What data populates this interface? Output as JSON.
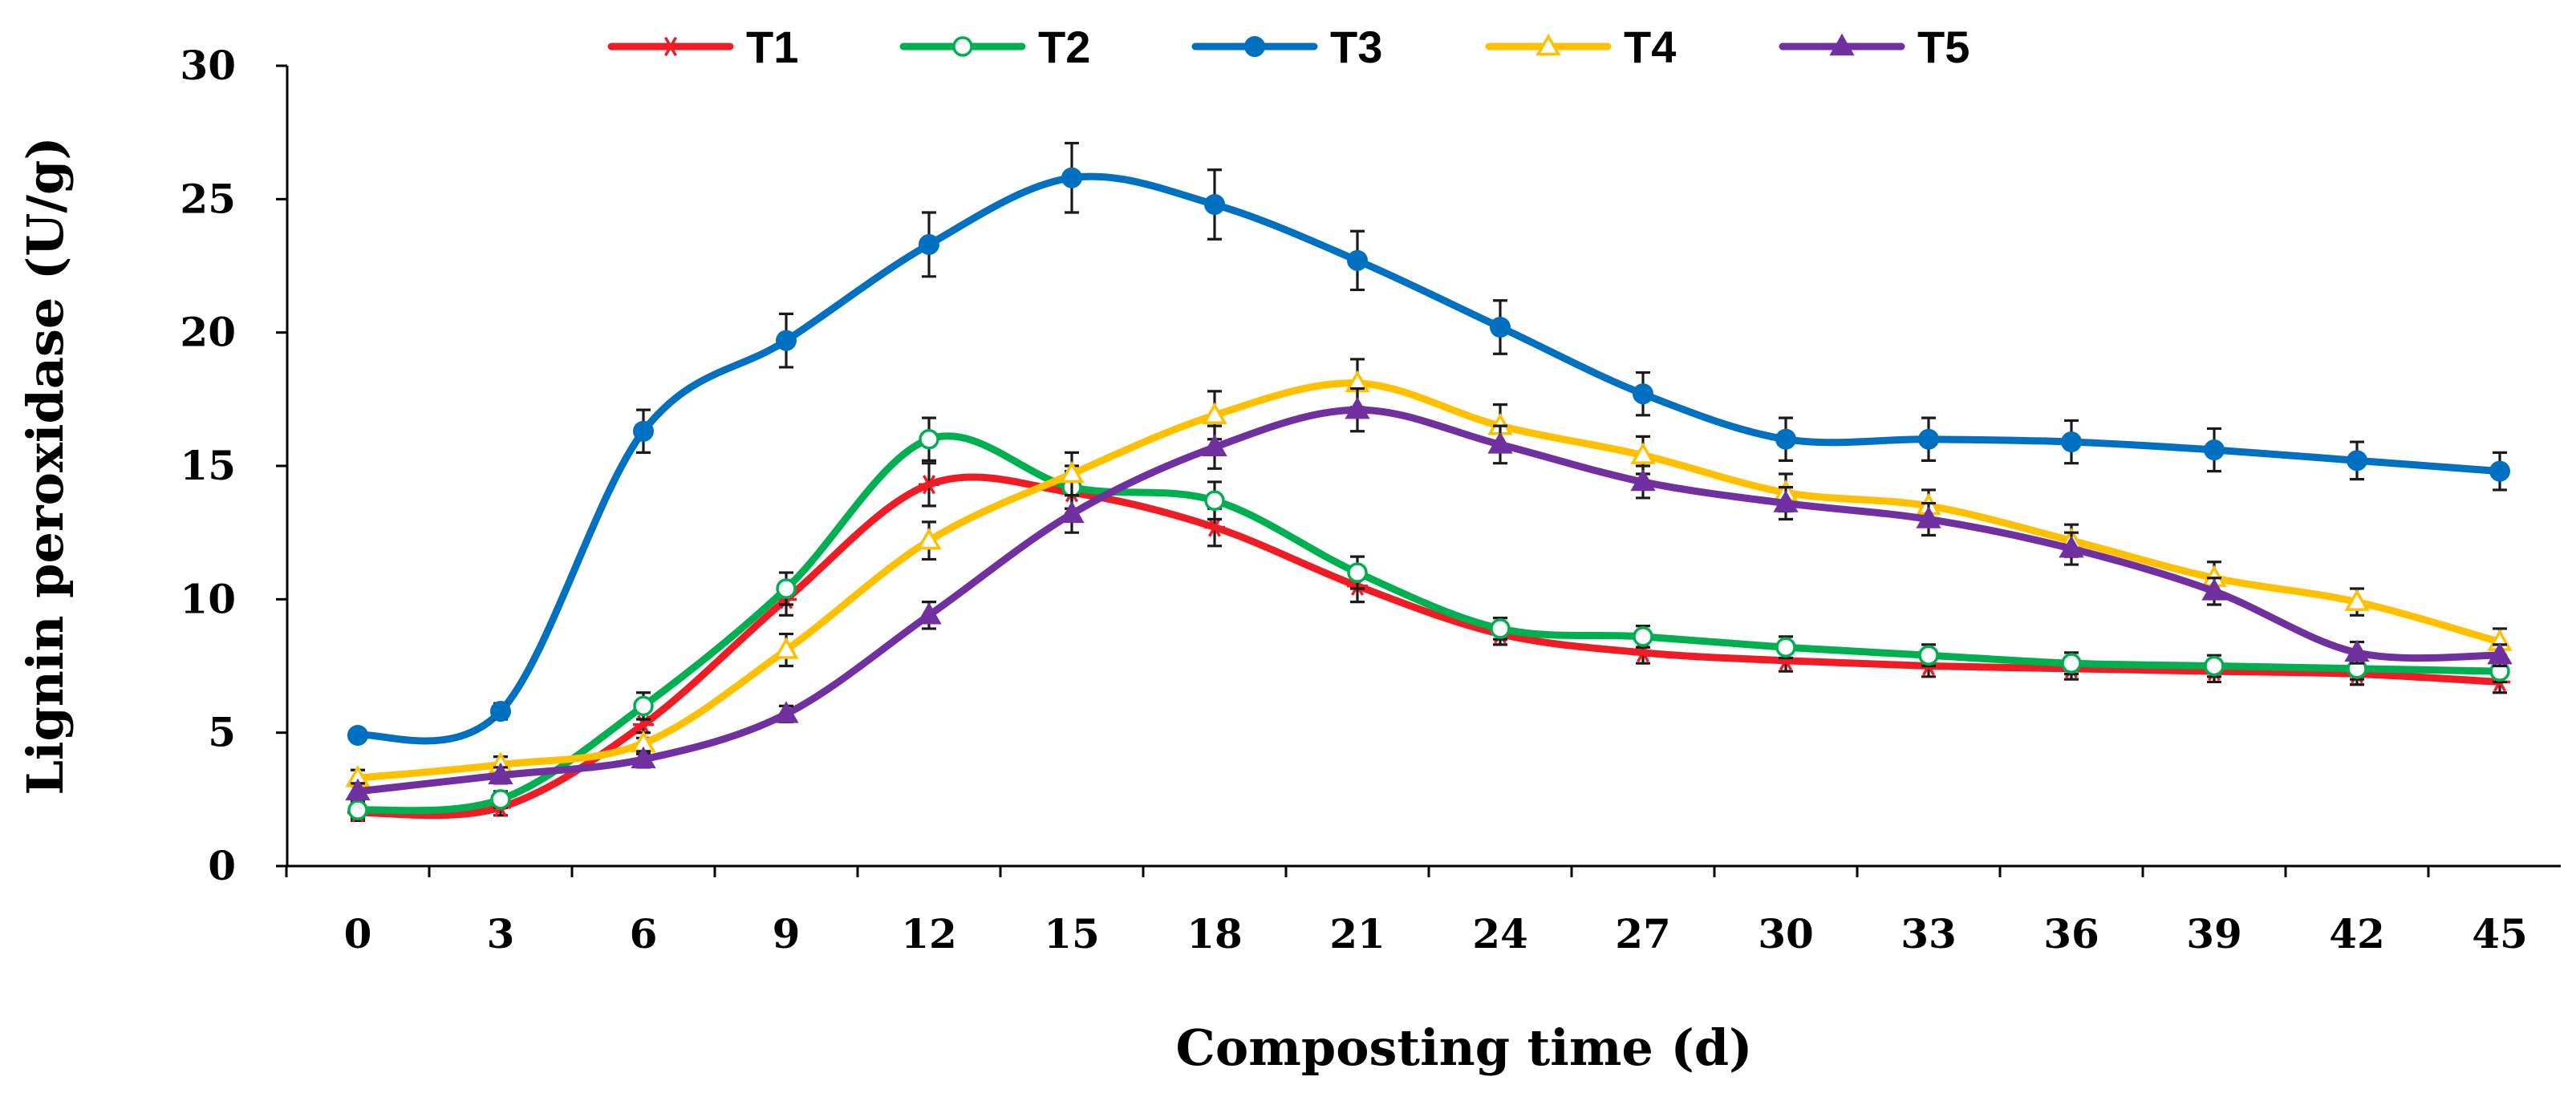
{
  "chart_data": {
    "type": "line",
    "title": "",
    "xlabel": "Composting time (d)",
    "ylabel": "Lignin peroxidase (U/g)",
    "x": [
      0,
      3,
      6,
      9,
      12,
      15,
      18,
      21,
      24,
      27,
      30,
      33,
      36,
      39,
      42,
      45
    ],
    "x_tick_labels": [
      "0",
      "3",
      "6",
      "9",
      "12",
      "15",
      "18",
      "21",
      "24",
      "27",
      "30",
      "33",
      "36",
      "39",
      "42",
      "45"
    ],
    "ylim": [
      0,
      30
    ],
    "y_ticks": [
      0,
      5,
      10,
      15,
      20,
      25,
      30
    ],
    "grid": false,
    "legend_placement": "top",
    "series": [
      {
        "name": "T1",
        "color": "#ee1c25",
        "marker": "asterisk",
        "values": [
          2.0,
          2.2,
          5.3,
          10.0,
          14.3,
          14.0,
          12.7,
          10.5,
          8.7,
          8.0,
          7.7,
          7.5,
          7.4,
          7.3,
          7.2,
          6.9
        ],
        "errors": [
          0.3,
          0.3,
          0.5,
          0.6,
          0.8,
          0.8,
          0.7,
          0.6,
          0.4,
          0.4,
          0.4,
          0.4,
          0.4,
          0.4,
          0.4,
          0.4
        ]
      },
      {
        "name": "T2",
        "color": "#00b050",
        "marker": "circle-open",
        "values": [
          2.1,
          2.5,
          6.0,
          10.4,
          16.0,
          14.2,
          13.7,
          11.0,
          8.9,
          8.6,
          8.2,
          7.9,
          7.6,
          7.5,
          7.4,
          7.3
        ],
        "errors": [
          0.3,
          0.3,
          0.5,
          0.6,
          0.8,
          0.8,
          0.7,
          0.6,
          0.4,
          0.4,
          0.4,
          0.4,
          0.4,
          0.4,
          0.4,
          0.4
        ]
      },
      {
        "name": "T3",
        "color": "#0070c0",
        "marker": "circle",
        "values": [
          4.9,
          5.8,
          16.3,
          19.7,
          23.3,
          25.8,
          24.8,
          22.7,
          20.2,
          17.7,
          16.0,
          16.0,
          15.9,
          15.6,
          15.2,
          14.8
        ],
        "errors": [
          0.2,
          0.3,
          0.8,
          1.0,
          1.2,
          1.3,
          1.3,
          1.1,
          1.0,
          0.8,
          0.8,
          0.8,
          0.8,
          0.8,
          0.7,
          0.7
        ]
      },
      {
        "name": "T4",
        "color": "#ffc000",
        "marker": "triangle-open",
        "values": [
          3.3,
          3.8,
          4.6,
          8.1,
          12.2,
          14.7,
          16.9,
          18.1,
          16.5,
          15.4,
          14.0,
          13.5,
          12.2,
          10.8,
          9.9,
          8.4
        ],
        "errors": [
          0.3,
          0.3,
          0.4,
          0.6,
          0.7,
          0.8,
          0.9,
          0.9,
          0.8,
          0.7,
          0.7,
          0.6,
          0.6,
          0.6,
          0.5,
          0.5
        ]
      },
      {
        "name": "T5",
        "color": "#7030a0",
        "marker": "triangle",
        "values": [
          2.8,
          3.4,
          4.0,
          5.7,
          9.4,
          13.2,
          15.7,
          17.1,
          15.8,
          14.4,
          13.6,
          13.0,
          11.9,
          10.3,
          8.0,
          7.9
        ],
        "errors": [
          0.3,
          0.3,
          0.3,
          0.3,
          0.5,
          0.7,
          0.8,
          0.8,
          0.7,
          0.6,
          0.6,
          0.6,
          0.6,
          0.5,
          0.4,
          0.4
        ]
      }
    ]
  }
}
